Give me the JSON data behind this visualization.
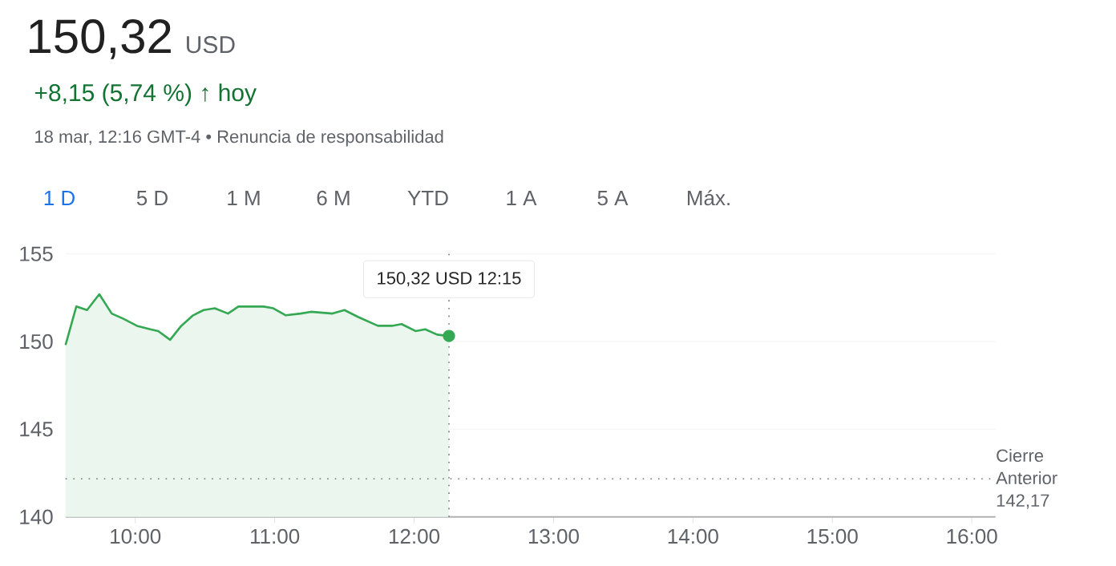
{
  "chart_data": {
    "type": "area",
    "title": "150,32",
    "subtitle": "USD",
    "annotations": [
      "+8,15 (5,74 %) ↑ hoy",
      "18 mar, 12:16 GMT-4 • Renuncia de responsabilidad",
      "1 D",
      "5 D",
      "1 M",
      "6 M",
      "YTD",
      "1 A",
      "5 A",
      "Máx.",
      {
        "text": "150,32 USD 12:15",
        "x": 12.25,
        "y": 150.32
      }
    ],
    "x": [
      9.5,
      9.577,
      9.654,
      9.742,
      9.831,
      9.915,
      10.012,
      10.108,
      10.165,
      10.25,
      10.33,
      10.415,
      10.49,
      10.57,
      10.665,
      10.74,
      10.84,
      10.92,
      10.99,
      11.08,
      11.185,
      11.26,
      11.415,
      11.5,
      11.6,
      11.74,
      11.84,
      11.91,
      12.01,
      12.08,
      12.165,
      12.25
    ],
    "values": [
      149.8,
      152.0,
      151.8,
      152.7,
      151.6,
      151.3,
      150.9,
      150.7,
      150.6,
      150.1,
      150.9,
      151.5,
      151.8,
      151.9,
      151.6,
      152.0,
      152.0,
      152.0,
      151.9,
      151.5,
      151.6,
      151.7,
      151.6,
      151.8,
      151.4,
      150.9,
      150.9,
      151.0,
      150.6,
      150.7,
      150.4,
      150.32
    ],
    "color": "#34a853",
    "xlim": [
      9.5,
      16.17
    ],
    "ylim": [
      140,
      155
    ],
    "xticks": [
      {
        "value": 10,
        "label": "10:00"
      },
      {
        "value": 11,
        "label": "11:00"
      },
      {
        "value": 12,
        "label": "12:00"
      },
      {
        "value": 13,
        "label": "13:00"
      },
      {
        "value": 14,
        "label": "14:00"
      },
      {
        "value": 15,
        "label": "15:00"
      },
      {
        "value": 16,
        "label": "16:00"
      }
    ],
    "yticks": [
      140,
      145,
      150,
      155
    ],
    "grid": "y",
    "marker": "none",
    "line_style": "solid",
    "ref_lines": [
      {
        "axis": "y",
        "value": 142.17,
        "label": "Cierre Anterior 142,17",
        "line_style": "dotted"
      },
      {
        "axis": "x",
        "value": 12.25,
        "line_style": "dotted"
      }
    ]
  }
}
